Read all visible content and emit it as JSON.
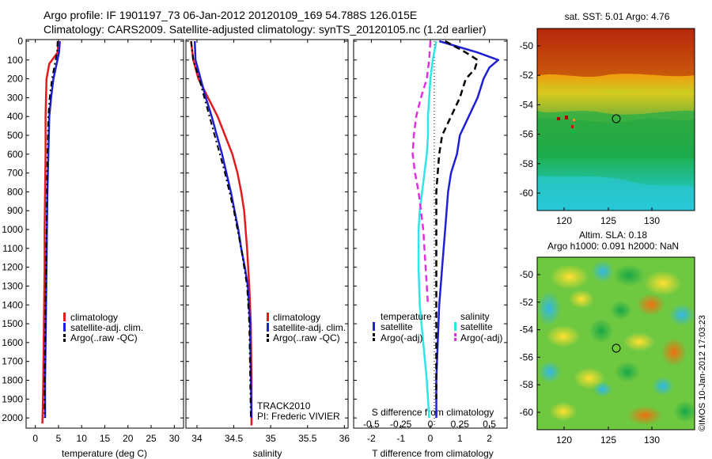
{
  "header": {
    "line1": "Argo profile: IF 1901197_73 06-Jan-2012 20120109_169 54.788S 126.015E",
    "line2": "Climatology: CARS2009. Satellite-adjusted climatology: synTS_20120105.nc (1.2d earlier)"
  },
  "colors": {
    "climatology": "#e41a1c",
    "satellite": "#1f1fd6",
    "argo": "#000000",
    "t_satellite": "#1f1fd6",
    "s_satellite": "#2ee6e6",
    "s_argo": "#e030e0"
  },
  "depth_ticks": [
    "0",
    "100",
    "200",
    "300",
    "400",
    "500",
    "600",
    "700",
    "800",
    "900",
    "1000",
    "1100",
    "1200",
    "1300",
    "1400",
    "1500",
    "1600",
    "1700",
    "1800",
    "1900",
    "2000"
  ],
  "temp_panel": {
    "xlabel": "temperature (deg C)",
    "xticks": [
      "0",
      "5",
      "10",
      "15",
      "20",
      "25",
      "30"
    ],
    "legend": [
      "climatology",
      "satellite-adj. clim.",
      "Argo(..raw -QC)"
    ]
  },
  "sal_panel": {
    "xlabel": "salinity",
    "xticks": [
      "34",
      "34.5",
      "35",
      "35.5",
      "36"
    ],
    "legend": [
      "climatology",
      "satellite-adj. clim.",
      "Argo(..raw -QC)"
    ],
    "note1": "TRACK2010",
    "note2": "PI: Frederic VIVIER"
  },
  "diff_panel": {
    "xlabel": "T difference from climatology",
    "xlabel_top": "S difference from climatology",
    "xticks_t": [
      "-2",
      "-1",
      "0",
      "1",
      "2"
    ],
    "xticks_s": [
      "-0.5",
      "-0.25",
      "0",
      "0.25",
      "0.5"
    ],
    "legend_title_t": "temperature",
    "legend_title_s": "salinity",
    "legend_t": [
      "satellite",
      "Argo(-adj)"
    ],
    "legend_s": [
      "satellite",
      "Argo(-adj)"
    ]
  },
  "sst_map": {
    "title": "sat. SST: 5.01  Argo: 4.76",
    "yticks": [
      "-50",
      "-52",
      "-54",
      "-56",
      "-58",
      "-60"
    ],
    "xticks": [
      "120",
      "125",
      "130"
    ]
  },
  "sla_map": {
    "title1": "Altim. SLA: 0.18",
    "title2": "Argo h1000: 0.091  h2000: NaN",
    "yticks": [
      "-50",
      "-52",
      "-54",
      "-56",
      "-58",
      "-60"
    ],
    "xticks": [
      "120",
      "125",
      "130"
    ]
  },
  "credit": "©IMOS 10-Jan-2012 17:03:23",
  "chart_data": [
    {
      "type": "line",
      "title": "",
      "xlabel": "temperature (deg C)",
      "ylabel": "",
      "xlim": [
        -2,
        32
      ],
      "ylim": [
        2050,
        0
      ],
      "series": [
        {
          "name": "climatology",
          "x": [
            5.0,
            4.8,
            3.0,
            2.4,
            2.3,
            2.2,
            2.2,
            2.1,
            2.0,
            2.0,
            1.9,
            1.8,
            1.7,
            1.6,
            1.5
          ],
          "y": [
            0,
            60,
            120,
            200,
            300,
            400,
            600,
            800,
            1000,
            1200,
            1400,
            1600,
            1800,
            1950,
            2030
          ]
        },
        {
          "name": "satellite-adj. clim.",
          "x": [
            5.3,
            5.1,
            4.6,
            3.9,
            3.4,
            3.0,
            2.8,
            2.6,
            2.5,
            2.4,
            2.3,
            2.2,
            2.1,
            2.1
          ],
          "y": [
            0,
            60,
            120,
            200,
            300,
            400,
            600,
            800,
            1000,
            1200,
            1400,
            1600,
            1800,
            2000
          ]
        },
        {
          "name": "Argo(..raw -QC)",
          "x": [
            4.8,
            4.7,
            4.2,
            3.6,
            3.1,
            2.8,
            2.6,
            2.5,
            2.4,
            2.3,
            2.2,
            2.1,
            2.0,
            2.0
          ],
          "y": [
            0,
            60,
            120,
            200,
            300,
            400,
            600,
            800,
            1000,
            1200,
            1400,
            1600,
            1800,
            2000
          ]
        }
      ]
    },
    {
      "type": "line",
      "title": "",
      "xlabel": "salinity",
      "ylabel": "",
      "xlim": [
        33.85,
        36.05
      ],
      "ylim": [
        2050,
        0
      ],
      "series": [
        {
          "name": "climatology",
          "x": [
            33.92,
            33.95,
            34.02,
            34.15,
            34.28,
            34.38,
            34.48,
            34.55,
            34.6,
            34.64,
            34.68,
            34.71,
            34.73,
            34.74,
            34.74
          ],
          "y": [
            0,
            100,
            200,
            300,
            400,
            500,
            600,
            700,
            800,
            900,
            1100,
            1300,
            1500,
            1800,
            2040
          ]
        },
        {
          "name": "satellite-adj. clim.",
          "x": [
            33.97,
            33.98,
            34.05,
            34.12,
            34.2,
            34.27,
            34.34,
            34.4,
            34.46,
            34.51,
            34.56,
            34.6,
            34.65,
            34.69,
            34.72,
            34.74
          ],
          "y": [
            0,
            100,
            200,
            300,
            400,
            500,
            600,
            700,
            800,
            900,
            1000,
            1100,
            1200,
            1300,
            1500,
            2000
          ]
        },
        {
          "name": "Argo(..raw -QC)",
          "x": [
            33.92,
            33.95,
            34.03,
            34.1,
            34.17,
            34.24,
            34.31,
            34.38,
            34.44,
            34.5,
            34.55,
            34.6,
            34.64,
            34.68,
            34.71,
            34.73
          ],
          "y": [
            0,
            100,
            200,
            300,
            400,
            500,
            600,
            700,
            800,
            900,
            1000,
            1100,
            1200,
            1300,
            1500,
            2000
          ]
        }
      ]
    },
    {
      "type": "line",
      "title": "",
      "xlabel": "T difference from climatology",
      "ylabel": "",
      "xlim": [
        -2.6,
        2.6
      ],
      "ylim": [
        2050,
        0
      ],
      "series": [
        {
          "name": "satellite",
          "x": [
            0.3,
            1.6,
            2.3,
            2.0,
            1.8,
            1.6,
            1.3,
            1.0,
            0.9,
            0.7,
            0.6,
            0.5,
            0.4,
            0.3,
            0.25,
            0.2,
            0.2
          ],
          "y": [
            0,
            60,
            100,
            140,
            200,
            300,
            400,
            500,
            600,
            700,
            800,
            1000,
            1200,
            1400,
            1600,
            1800,
            2000
          ]
        },
        {
          "name": "Argo(-adj)",
          "x": [
            0.5,
            1.2,
            1.6,
            1.5,
            1.2,
            1.0,
            0.7,
            0.4,
            0.3,
            0.25,
            0.2,
            0.2,
            0.2,
            0.2,
            0.2
          ],
          "y": [
            0,
            60,
            100,
            150,
            200,
            300,
            400,
            500,
            600,
            700,
            800,
            1000,
            1300,
            1600,
            1900
          ]
        }
      ]
    },
    {
      "type": "line",
      "title": "",
      "xlabel": "S difference from climatology",
      "ylabel": "",
      "xlim": [
        -0.65,
        0.65
      ],
      "ylim": [
        2050,
        0
      ],
      "series": [
        {
          "name": "satellite",
          "x": [
            0.05,
            0.02,
            0.0,
            -0.01,
            -0.02,
            -0.02,
            -0.03,
            -0.05,
            -0.07,
            -0.09,
            -0.1,
            -0.1,
            -0.09,
            -0.06,
            -0.03,
            -0.01
          ],
          "y": [
            0,
            100,
            200,
            300,
            400,
            500,
            600,
            700,
            800,
            900,
            1000,
            1200,
            1400,
            1600,
            1800,
            2000
          ]
        },
        {
          "name": "Argo(-adj)",
          "x": [
            0.0,
            -0.01,
            -0.03,
            -0.08,
            -0.12,
            -0.14,
            -0.15,
            -0.13,
            -0.1,
            -0.08,
            -0.06,
            -0.05,
            -0.04,
            -0.03,
            -0.02
          ],
          "y": [
            0,
            100,
            200,
            300,
            400,
            500,
            600,
            700,
            800,
            900,
            1000,
            1100,
            1200,
            1300,
            1400
          ]
        }
      ]
    }
  ]
}
